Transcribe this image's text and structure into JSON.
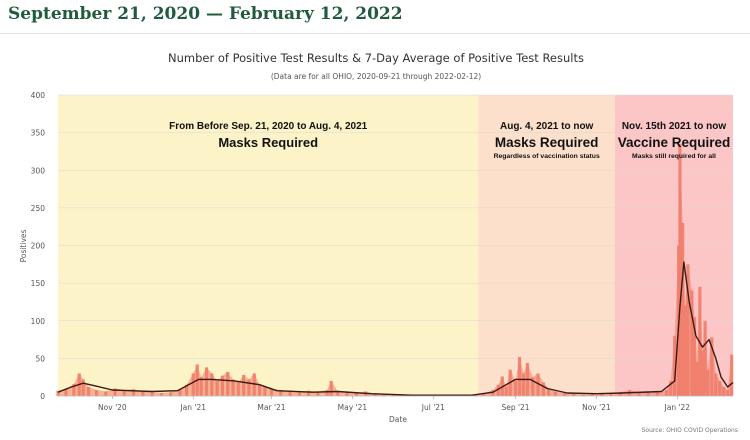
{
  "page": {
    "heading": "September 21, 2020 — February 12, 2022"
  },
  "chart_data": {
    "type": "bar",
    "title": "Number of Positive Test Results & 7-Day Average of Positive Test Results",
    "subtitle": "(Data are for all OHIO, 2020-09-21 through 2022-02-12)",
    "xlabel": "Date",
    "ylabel": "Positives",
    "ylim": [
      0,
      400
    ],
    "y_ticks": [
      0,
      50,
      100,
      150,
      200,
      250,
      300,
      350,
      400
    ],
    "x_ticks": [
      {
        "label": "Nov '20",
        "date": "2020-11-01"
      },
      {
        "label": "Jan '21",
        "date": "2021-01-01"
      },
      {
        "label": "Mar '21",
        "date": "2021-03-01"
      },
      {
        "label": "May '21",
        "date": "2021-05-01"
      },
      {
        "label": "Jul '21",
        "date": "2021-07-01"
      },
      {
        "label": "Sep '21",
        "date": "2021-09-01"
      },
      {
        "label": "Nov '21",
        "date": "2021-11-01"
      },
      {
        "label": "Jan '22",
        "date": "2022-01-01"
      }
    ],
    "date_range": [
      "2020-09-21",
      "2022-02-12"
    ],
    "source": "Source: OHIO COVID Operations",
    "bands": [
      {
        "start": "2020-09-21",
        "end": "2021-08-04",
        "color": "#fdf3c8",
        "line1": "From Before Sep. 21, 2020 to Aug. 4, 2021",
        "line2": "Masks Required",
        "line3": ""
      },
      {
        "start": "2021-08-04",
        "end": "2021-11-15",
        "color": "#fde0cb",
        "line1": "Aug. 4, 2021 to now",
        "line2": "Masks Required",
        "line3": "Regardless of vaccination status"
      },
      {
        "start": "2021-11-15",
        "end": "2022-02-12",
        "color": "#fcc6c6",
        "line1": "Nov. 15th 2021 to now",
        "line2": "Vaccine Required",
        "line3": "Masks still required for all"
      }
    ],
    "series": [
      {
        "name": "Positive Test Results",
        "kind": "bars",
        "color": "#f07e6a",
        "points": [
          [
            "2020-09-21",
            7
          ],
          [
            "2020-09-27",
            9
          ],
          [
            "2020-10-03",
            16
          ],
          [
            "2020-10-07",
            30
          ],
          [
            "2020-10-10",
            22
          ],
          [
            "2020-10-14",
            12
          ],
          [
            "2020-10-20",
            8
          ],
          [
            "2020-10-27",
            6
          ],
          [
            "2020-11-03",
            10
          ],
          [
            "2020-11-10",
            8
          ],
          [
            "2020-11-17",
            9
          ],
          [
            "2020-11-24",
            6
          ],
          [
            "2020-12-01",
            5
          ],
          [
            "2020-12-08",
            4
          ],
          [
            "2020-12-15",
            5
          ],
          [
            "2020-12-22",
            8
          ],
          [
            "2020-12-27",
            15
          ],
          [
            "2021-01-01",
            30
          ],
          [
            "2021-01-04",
            42
          ],
          [
            "2021-01-07",
            25
          ],
          [
            "2021-01-11",
            38
          ],
          [
            "2021-01-15",
            30
          ],
          [
            "2021-01-19",
            20
          ],
          [
            "2021-01-23",
            27
          ],
          [
            "2021-01-27",
            32
          ],
          [
            "2021-01-31",
            22
          ],
          [
            "2021-02-04",
            18
          ],
          [
            "2021-02-08",
            28
          ],
          [
            "2021-02-12",
            22
          ],
          [
            "2021-02-16",
            30
          ],
          [
            "2021-02-20",
            15
          ],
          [
            "2021-02-24",
            12
          ],
          [
            "2021-03-01",
            10
          ],
          [
            "2021-03-08",
            8
          ],
          [
            "2021-03-15",
            6
          ],
          [
            "2021-03-22",
            5
          ],
          [
            "2021-03-29",
            7
          ],
          [
            "2021-04-05",
            6
          ],
          [
            "2021-04-12",
            8
          ],
          [
            "2021-04-15",
            20
          ],
          [
            "2021-04-20",
            6
          ],
          [
            "2021-04-27",
            5
          ],
          [
            "2021-05-04",
            4
          ],
          [
            "2021-05-11",
            6
          ],
          [
            "2021-05-18",
            3
          ],
          [
            "2021-05-25",
            2
          ],
          [
            "2021-06-01",
            2
          ],
          [
            "2021-06-15",
            1
          ],
          [
            "2021-07-01",
            1
          ],
          [
            "2021-07-15",
            1
          ],
          [
            "2021-08-01",
            2
          ],
          [
            "2021-08-08",
            3
          ],
          [
            "2021-08-15",
            8
          ],
          [
            "2021-08-19",
            15
          ],
          [
            "2021-08-22",
            26
          ],
          [
            "2021-08-25",
            12
          ],
          [
            "2021-08-28",
            35
          ],
          [
            "2021-09-01",
            20
          ],
          [
            "2021-09-04",
            52
          ],
          [
            "2021-09-07",
            30
          ],
          [
            "2021-09-10",
            44
          ],
          [
            "2021-09-14",
            25
          ],
          [
            "2021-09-18",
            30
          ],
          [
            "2021-09-22",
            18
          ],
          [
            "2021-09-26",
            10
          ],
          [
            "2021-10-01",
            6
          ],
          [
            "2021-10-08",
            4
          ],
          [
            "2021-10-15",
            3
          ],
          [
            "2021-10-22",
            2
          ],
          [
            "2021-10-29",
            3
          ],
          [
            "2021-11-05",
            4
          ],
          [
            "2021-11-12",
            3
          ],
          [
            "2021-11-19",
            5
          ],
          [
            "2021-11-26",
            8
          ],
          [
            "2021-12-03",
            5
          ],
          [
            "2021-12-10",
            6
          ],
          [
            "2021-12-17",
            5
          ],
          [
            "2021-12-24",
            8
          ],
          [
            "2021-12-27",
            20
          ],
          [
            "2021-12-30",
            80
          ],
          [
            "2022-01-02",
            200
          ],
          [
            "2022-01-03",
            335
          ],
          [
            "2022-01-05",
            230
          ],
          [
            "2022-01-07",
            120
          ],
          [
            "2022-01-09",
            175
          ],
          [
            "2022-01-12",
            140
          ],
          [
            "2022-01-14",
            105
          ],
          [
            "2022-01-16",
            45
          ],
          [
            "2022-01-18",
            145
          ],
          [
            "2022-01-20",
            60
          ],
          [
            "2022-01-22",
            100
          ],
          [
            "2022-01-24",
            35
          ],
          [
            "2022-01-27",
            78
          ],
          [
            "2022-01-30",
            30
          ],
          [
            "2022-02-02",
            20
          ],
          [
            "2022-02-05",
            12
          ],
          [
            "2022-02-08",
            8
          ],
          [
            "2022-02-11",
            55
          ]
        ]
      },
      {
        "name": "7-Day Average of Positive Test Results",
        "kind": "line",
        "color": "#3a1a14",
        "points": [
          [
            "2020-09-21",
            5
          ],
          [
            "2020-10-01",
            12
          ],
          [
            "2020-10-10",
            17
          ],
          [
            "2020-10-20",
            13
          ],
          [
            "2020-11-01",
            8
          ],
          [
            "2020-12-01",
            6
          ],
          [
            "2020-12-20",
            7
          ],
          [
            "2021-01-05",
            22
          ],
          [
            "2021-01-15",
            22
          ],
          [
            "2021-02-01",
            20
          ],
          [
            "2021-02-20",
            15
          ],
          [
            "2021-03-05",
            7
          ],
          [
            "2021-04-01",
            5
          ],
          [
            "2021-04-20",
            6
          ],
          [
            "2021-05-15",
            3
          ],
          [
            "2021-06-15",
            1
          ],
          [
            "2021-07-30",
            1
          ],
          [
            "2021-08-15",
            5
          ],
          [
            "2021-09-01",
            22
          ],
          [
            "2021-09-12",
            22
          ],
          [
            "2021-09-25",
            10
          ],
          [
            "2021-10-10",
            4
          ],
          [
            "2021-11-01",
            3
          ],
          [
            "2021-11-20",
            4
          ],
          [
            "2021-12-20",
            6
          ],
          [
            "2021-12-30",
            20
          ],
          [
            "2022-01-03",
            120
          ],
          [
            "2022-01-06",
            178
          ],
          [
            "2022-01-10",
            125
          ],
          [
            "2022-01-15",
            80
          ],
          [
            "2022-01-20",
            65
          ],
          [
            "2022-01-25",
            75
          ],
          [
            "2022-01-30",
            50
          ],
          [
            "2022-02-03",
            25
          ],
          [
            "2022-02-08",
            12
          ],
          [
            "2022-02-10",
            15
          ],
          [
            "2022-02-12",
            18
          ]
        ]
      }
    ]
  }
}
